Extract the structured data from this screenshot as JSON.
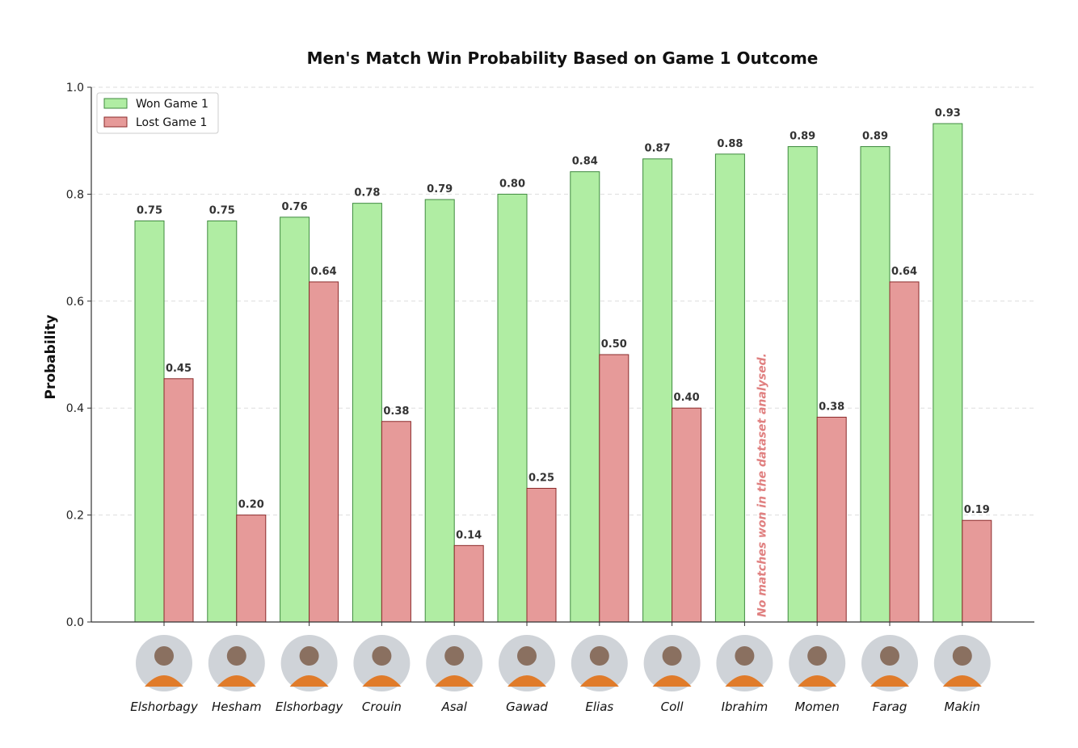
{
  "chart_data": {
    "type": "bar",
    "title": "Men's Match Win Probability Based on Game 1 Outcome",
    "xlabel": "",
    "ylabel": "Probability",
    "ylim": [
      0.0,
      1.0
    ],
    "yticks": [
      "0.0",
      "0.2",
      "0.4",
      "0.6",
      "0.8",
      "1.0"
    ],
    "grid": "horizontal-dashed",
    "legend_position": "top-left",
    "categories": [
      "Elshorbagy",
      "Hesham",
      "Elshorbagy",
      "Crouin",
      "Asal",
      "Gawad",
      "Elias",
      "Coll",
      "Ibrahim",
      "Momen",
      "Farag",
      "Makin"
    ],
    "series": [
      {
        "name": "Won Game 1",
        "color": "#b0eda3",
        "edge": "#3f8a3f",
        "values": [
          0.75,
          0.75,
          0.757,
          0.783,
          0.79,
          0.8,
          0.842,
          0.866,
          0.875,
          0.889,
          0.889,
          0.932
        ],
        "labels": [
          "0.75",
          "0.75",
          "0.76",
          "0.78",
          "0.79",
          "0.80",
          "0.84",
          "0.87",
          "0.88",
          "0.89",
          "0.89",
          "0.93"
        ]
      },
      {
        "name": "Lost Game 1",
        "color": "#e69a99",
        "edge": "#8b2b2b",
        "values": [
          0.455,
          0.2,
          0.636,
          0.375,
          0.143,
          0.25,
          0.5,
          0.4,
          null,
          0.383,
          0.636,
          0.19
        ],
        "labels": [
          "0.45",
          "0.20",
          "0.64",
          "0.38",
          "0.14",
          "0.25",
          "0.50",
          "0.40",
          "",
          "0.38",
          "0.64",
          "0.19"
        ]
      }
    ],
    "annotation": {
      "category_index": 8,
      "text": "No matches won in the dataset analysed."
    },
    "avatar_icon": "player-photo-icon"
  }
}
